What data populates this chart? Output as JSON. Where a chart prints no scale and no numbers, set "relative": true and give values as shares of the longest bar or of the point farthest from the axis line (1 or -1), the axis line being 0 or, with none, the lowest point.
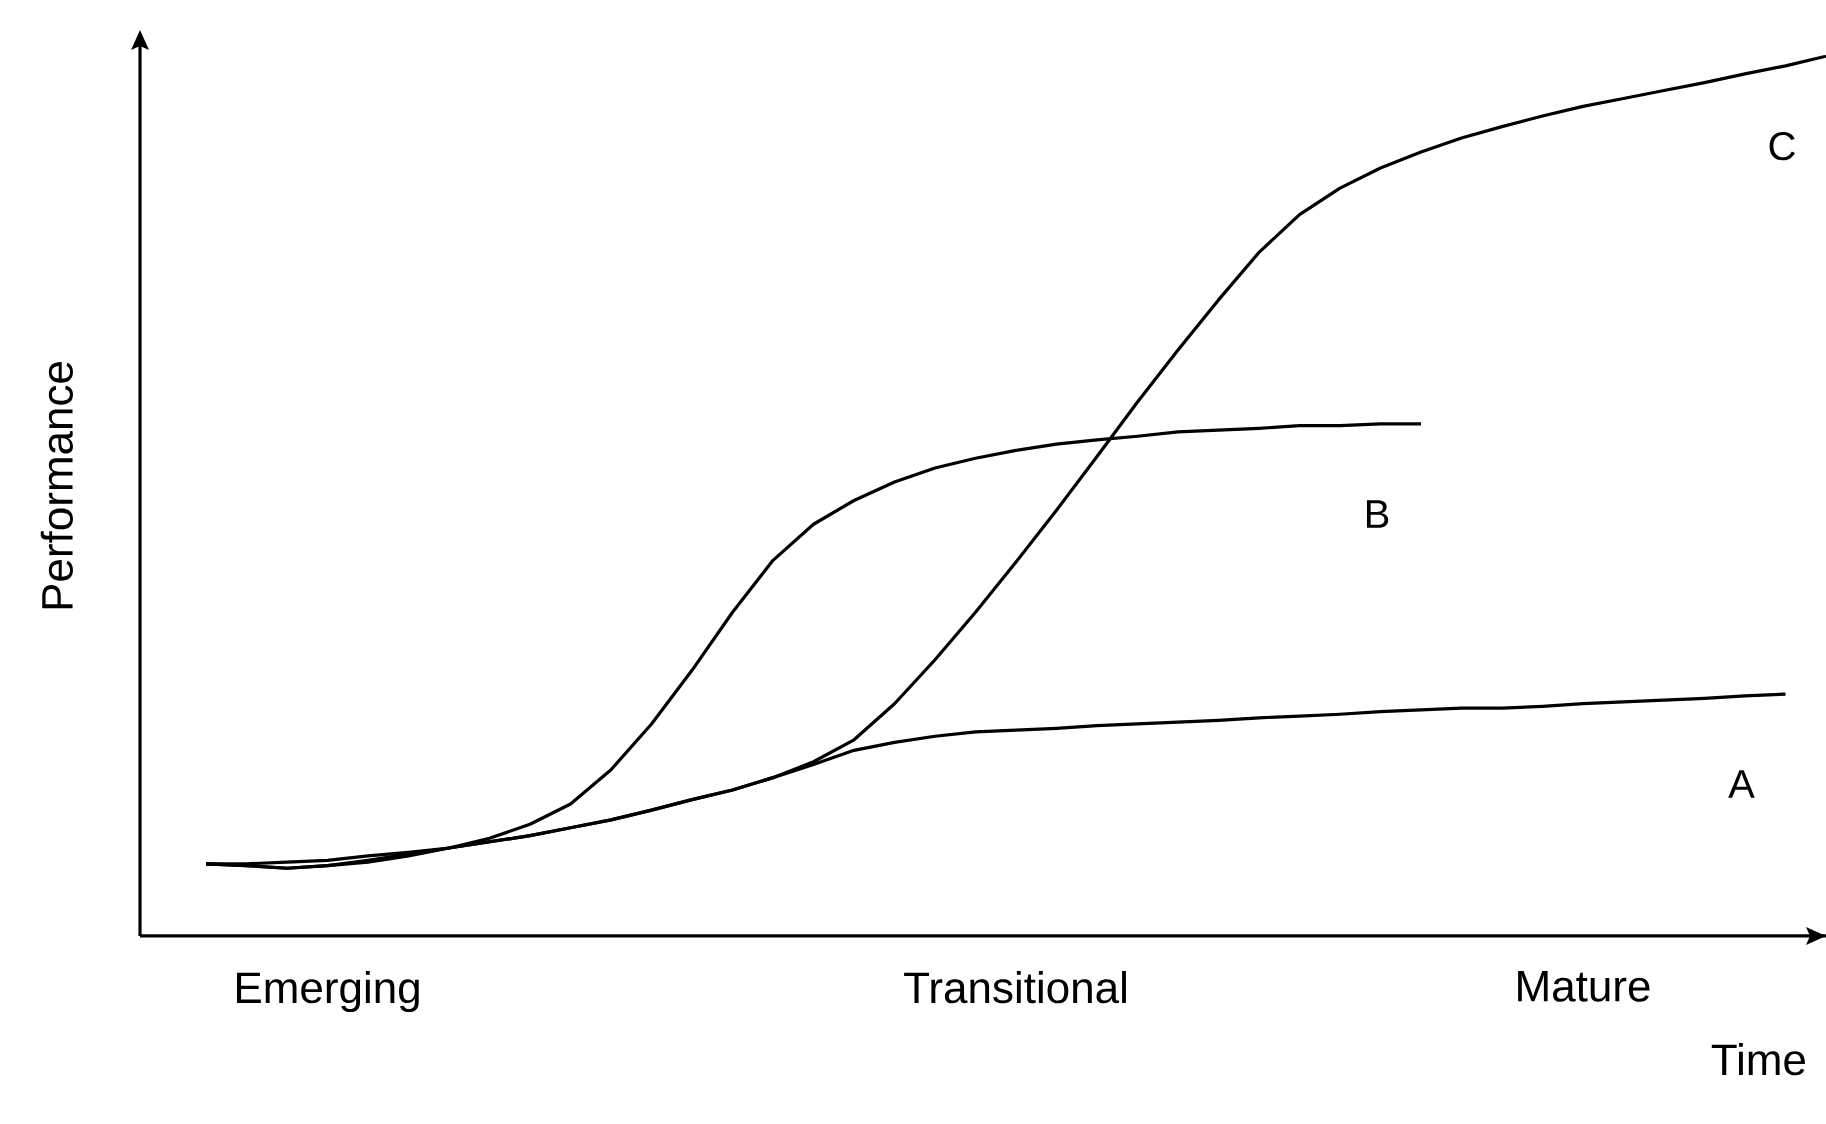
{
  "chart_data": {
    "type": "line",
    "relative": true,
    "xlabel": "Time",
    "ylabel": "Performance",
    "categories": [
      null,
      null,
      null,
      "Emerging",
      null,
      null,
      null,
      null,
      null,
      null,
      null,
      null,
      null,
      null,
      null,
      null,
      null,
      null,
      null,
      null,
      "Transitional",
      null,
      null,
      null,
      null,
      null,
      null,
      null,
      null,
      null,
      null,
      null,
      null,
      null,
      "Mature",
      null,
      null,
      null,
      null,
      null,
      null
    ],
    "series": [
      {
        "name": "A",
        "color": "#000000",
        "values": [
          0.082,
          0.082,
          0.084,
          0.086,
          0.091,
          0.095,
          0.1,
          0.107,
          0.114,
          0.123,
          0.132,
          0.143,
          0.155,
          0.166,
          0.18,
          0.195,
          0.211,
          0.22,
          0.227,
          0.232,
          0.234,
          0.236,
          0.239,
          0.241,
          0.243,
          0.245,
          0.248,
          0.25,
          0.252,
          0.255,
          0.257,
          0.259,
          0.259,
          0.261,
          0.264,
          0.266,
          0.268,
          0.27,
          0.273,
          0.275,
          null
        ]
      },
      {
        "name": "B",
        "color": "#000000",
        "values": [
          0.082,
          0.08,
          0.077,
          0.08,
          0.084,
          0.091,
          0.1,
          0.111,
          0.127,
          0.15,
          0.189,
          0.241,
          0.302,
          0.368,
          0.427,
          0.468,
          0.495,
          0.516,
          0.532,
          0.543,
          0.552,
          0.559,
          0.564,
          0.568,
          0.573,
          0.575,
          0.577,
          0.58,
          0.58,
          0.582,
          0.582,
          null,
          null,
          null,
          null,
          null,
          null,
          null,
          null,
          null,
          null
        ]
      },
      {
        "name": "C",
        "color": "#000000",
        "values": [
          0.082,
          0.08,
          0.077,
          0.08,
          0.086,
          0.093,
          0.1,
          0.107,
          0.114,
          0.123,
          0.132,
          0.143,
          0.155,
          0.166,
          0.18,
          0.198,
          0.223,
          0.264,
          0.314,
          0.368,
          0.425,
          0.484,
          0.545,
          0.607,
          0.666,
          0.723,
          0.777,
          0.82,
          0.85,
          0.873,
          0.891,
          0.907,
          0.92,
          0.932,
          0.943,
          0.952,
          0.961,
          0.97,
          0.98,
          0.989,
          1.0
        ]
      }
    ]
  }
}
